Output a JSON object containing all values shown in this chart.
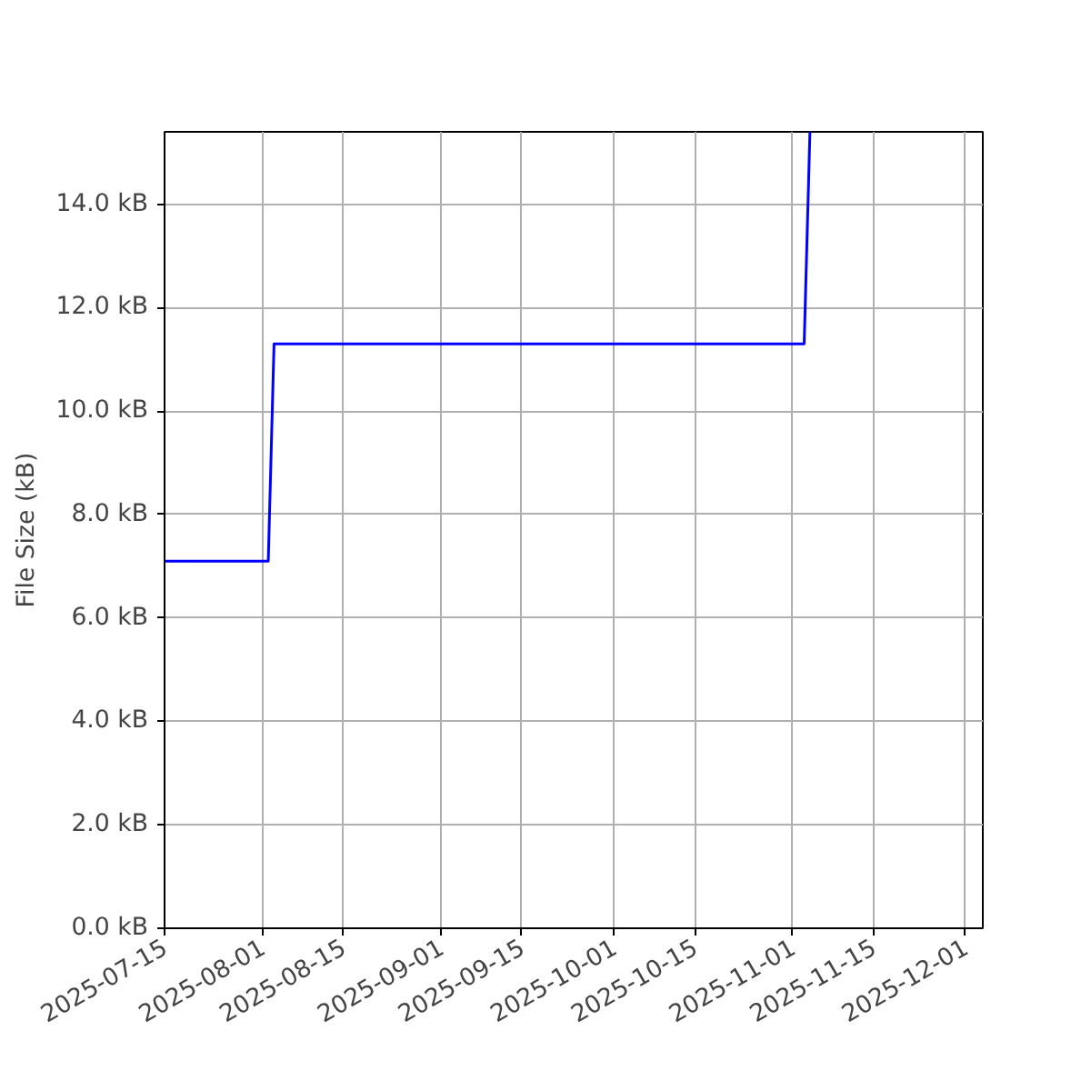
{
  "chart_data": {
    "type": "line",
    "ylabel": "File Size (kB)",
    "x": [
      "2025-07-15",
      "2025-08-02",
      "2025-08-03",
      "2025-11-03",
      "2025-11-04"
    ],
    "series": [
      {
        "color": "#0000ff",
        "values": [
          7.1,
          7.1,
          11.3,
          11.3,
          15.4
        ]
      }
    ],
    "xlim": [
      "2025-07-15",
      "2025-12-04"
    ],
    "xticks": [
      "2025-07-15",
      "2025-08-01",
      "2025-08-15",
      "2025-09-01",
      "2025-09-15",
      "2025-10-01",
      "2025-10-15",
      "2025-11-01",
      "2025-11-15",
      "2025-12-01"
    ],
    "ylim": [
      0,
      15.4
    ],
    "yticks": [
      {
        "value": 0,
        "label": "0.0 kB"
      },
      {
        "value": 2,
        "label": "2.0 kB"
      },
      {
        "value": 4,
        "label": "4.0 kB"
      },
      {
        "value": 6,
        "label": "6.0 kB"
      },
      {
        "value": 8,
        "label": "8.0 kB"
      },
      {
        "value": 10,
        "label": "10.0 kB"
      },
      {
        "value": 12,
        "label": "12.0 kB"
      },
      {
        "value": 14,
        "label": "14.0 kB"
      }
    ],
    "grid": true,
    "line_style": "solid"
  }
}
